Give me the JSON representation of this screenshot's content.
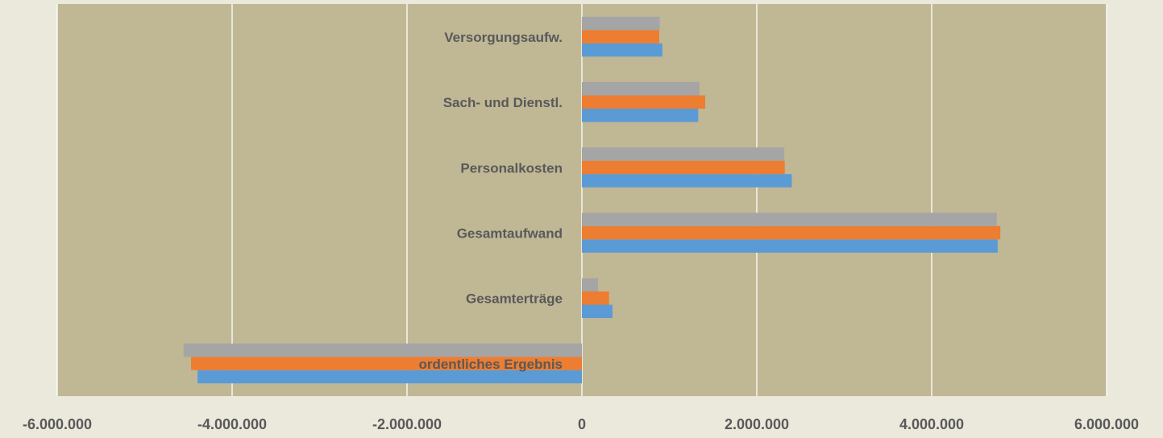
{
  "chart_data": {
    "type": "hbar",
    "categories": [
      "Versorgungsaufw.",
      "Sach- und Dienstl.",
      "Personalkosten",
      "Gesamtaufwand",
      "Gesamterträge",
      "ordentliches Ergebnis"
    ],
    "series": [
      {
        "color": "#5b9bd5",
        "values": [
          920000,
          1330000,
          2400000,
          4755000,
          350000,
          -4395000
        ]
      },
      {
        "color": "#ed7d31",
        "values": [
          885000,
          1410000,
          2320000,
          4785000,
          310000,
          -4470000
        ]
      },
      {
        "color": "#a5a5a5",
        "values": [
          890000,
          1345000,
          2315000,
          4745000,
          185000,
          -4555000
        ]
      }
    ],
    "xlim": [
      -6000000,
      6000000
    ],
    "xticks": [
      {
        "value": -6000000,
        "label": "-6.000.000"
      },
      {
        "value": -4000000,
        "label": "-4.000.000"
      },
      {
        "value": -2000000,
        "label": "-2.000.000"
      },
      0,
      {
        "value": 2000000,
        "label": "2.000.000"
      },
      {
        "value": 4000000,
        "label": "4.000.000"
      },
      {
        "value": 6000000,
        "label": "6.000.000"
      }
    ],
    "grid": true
  }
}
